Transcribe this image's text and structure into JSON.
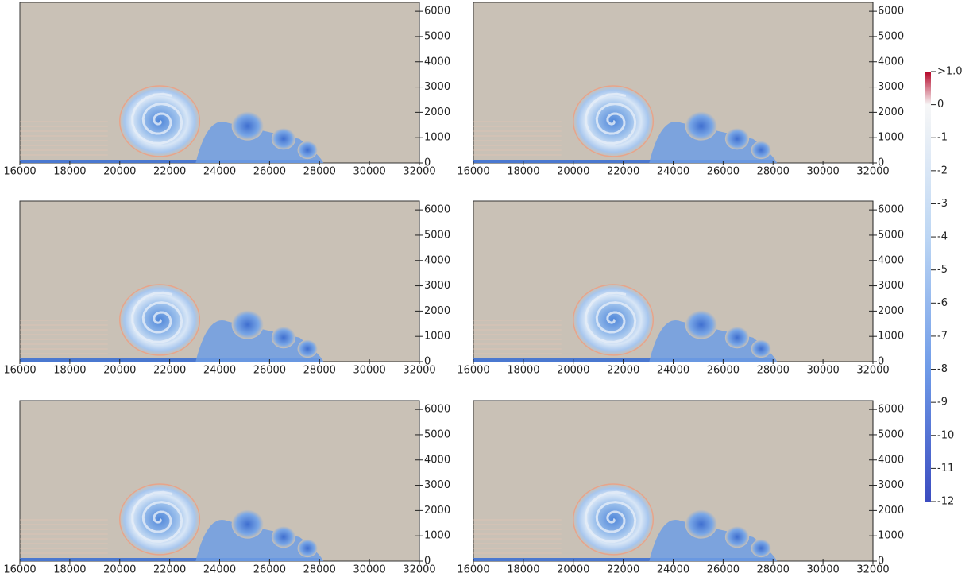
{
  "chart_data": [
    {
      "type": "field",
      "xlim": [
        16000,
        32000
      ],
      "ylim": [
        0,
        6350
      ],
      "xticks": [
        16000,
        18000,
        20000,
        22000,
        24000,
        26000,
        28000,
        30000,
        32000
      ],
      "yticks": [
        0,
        1000,
        2000,
        3000,
        4000,
        5000,
        6000
      ]
    },
    {
      "type": "field",
      "xlim": [
        16000,
        32000
      ],
      "ylim": [
        0,
        6350
      ],
      "xticks": [
        16000,
        18000,
        20000,
        22000,
        24000,
        26000,
        28000,
        30000,
        32000
      ],
      "yticks": [
        0,
        1000,
        2000,
        3000,
        4000,
        5000,
        6000
      ]
    },
    {
      "type": "field",
      "xlim": [
        16000,
        32000
      ],
      "ylim": [
        0,
        6350
      ],
      "xticks": [
        16000,
        18000,
        20000,
        22000,
        24000,
        26000,
        28000,
        30000,
        32000
      ],
      "yticks": [
        0,
        1000,
        2000,
        3000,
        4000,
        5000,
        6000
      ]
    },
    {
      "type": "field",
      "xlim": [
        16000,
        32000
      ],
      "ylim": [
        0,
        6350
      ],
      "xticks": [
        16000,
        18000,
        20000,
        22000,
        24000,
        26000,
        28000,
        30000,
        32000
      ],
      "yticks": [
        0,
        1000,
        2000,
        3000,
        4000,
        5000,
        6000
      ]
    },
    {
      "type": "field",
      "xlim": [
        16000,
        32000
      ],
      "ylim": [
        0,
        6350
      ],
      "xticks": [
        16000,
        18000,
        20000,
        22000,
        24000,
        26000,
        28000,
        30000,
        32000
      ],
      "yticks": [
        0,
        1000,
        2000,
        3000,
        4000,
        5000,
        6000
      ]
    },
    {
      "type": "field",
      "xlim": [
        16000,
        32000
      ],
      "ylim": [
        0,
        6350
      ],
      "xticks": [
        16000,
        18000,
        20000,
        22000,
        24000,
        26000,
        28000,
        30000,
        32000
      ],
      "yticks": [
        0,
        1000,
        2000,
        3000,
        4000,
        5000,
        6000
      ]
    },
    {
      "type": "colorbar",
      "clim": [
        -12,
        1
      ],
      "ticks": [
        {
          "value": 1,
          "label": ">1.0"
        },
        0,
        -1,
        -2,
        -3,
        -4,
        -5,
        -6,
        -7,
        -8,
        -9,
        -10,
        -11,
        -12
      ],
      "colors": [
        "#3b4cc0",
        "#6f9be8",
        "#bcd6f4",
        "#f7f7f7",
        "#b40426"
      ]
    }
  ]
}
